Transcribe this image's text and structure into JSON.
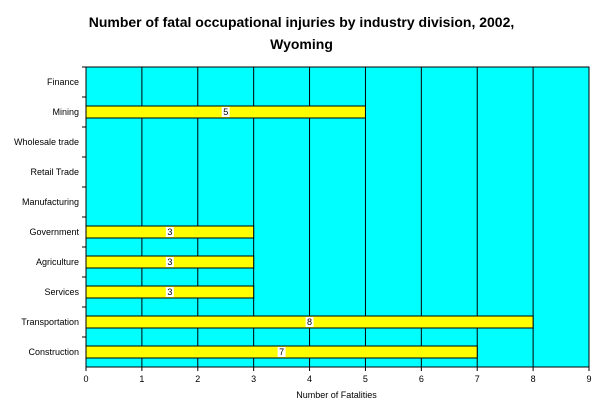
{
  "chart_data": {
    "type": "bar",
    "orientation": "horizontal",
    "title_lines": [
      "Number of fatal occupational injuries by industry division, 2002,",
      "Wyoming"
    ],
    "xlabel": "Number of Fatalities",
    "ylabel": "",
    "categories": [
      "Finance",
      "Mining",
      "Wholesale trade",
      "Retail Trade",
      "Manufacturing",
      "Government",
      "Agriculture",
      "Services",
      "Transportation",
      "Construction"
    ],
    "values": [
      null,
      5,
      null,
      null,
      null,
      3,
      3,
      3,
      8,
      7
    ],
    "data_labels": [
      "",
      "5",
      "",
      "",
      "",
      "3",
      "3",
      "3",
      "8",
      "7"
    ],
    "xlim": [
      0,
      9
    ],
    "xticks": [
      "0",
      "1",
      "2",
      "3",
      "4",
      "5",
      "6",
      "7",
      "8",
      "9"
    ],
    "grid": "vertical",
    "legend": "none",
    "colors": {
      "plot_background": "#00FFFF",
      "bar_fill": "#FFFF00",
      "bar_stroke": "#000000",
      "grid": "#000000"
    }
  }
}
